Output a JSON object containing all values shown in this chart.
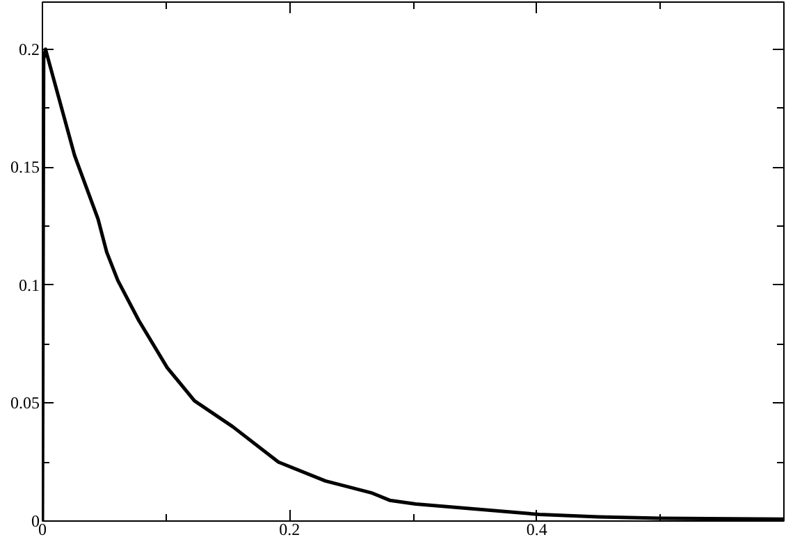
{
  "chart_data": {
    "type": "line",
    "x": [
      0,
      0.001,
      0.0025,
      0.026,
      0.045,
      0.052,
      0.061,
      0.078,
      0.101,
      0.123,
      0.154,
      0.191,
      0.229,
      0.266,
      0.281,
      0.302,
      0.402,
      0.45,
      0.5,
      0.6
    ],
    "series": [
      {
        "color": "#000000",
        "values": [
          0,
          0.196,
          0.2,
          0.155,
          0.128,
          0.114,
          0.102,
          0.085,
          0.065,
          0.051,
          0.04,
          0.025,
          0.017,
          0.012,
          0.0088,
          0.0072,
          0.0028,
          0.0018,
          0.0012,
          0.0008
        ]
      }
    ],
    "xlim": [
      0,
      0.6
    ],
    "ylim": [
      0,
      0.22
    ],
    "xticks": [
      0,
      {
        "value": 0.1,
        "label": null
      },
      0.2,
      {
        "value": 0.3,
        "label": null
      },
      0.4,
      {
        "value": 0.5,
        "label": null
      }
    ],
    "yticks": [
      0,
      {
        "value": 0.025,
        "label": null
      },
      0.05,
      {
        "value": 0.075,
        "label": null
      },
      0.1,
      {
        "value": 0.125,
        "label": null
      },
      0.15,
      {
        "value": 0.175,
        "label": null
      },
      0.2
    ],
    "grid": false,
    "marker": "none",
    "line_style": "solid"
  }
}
